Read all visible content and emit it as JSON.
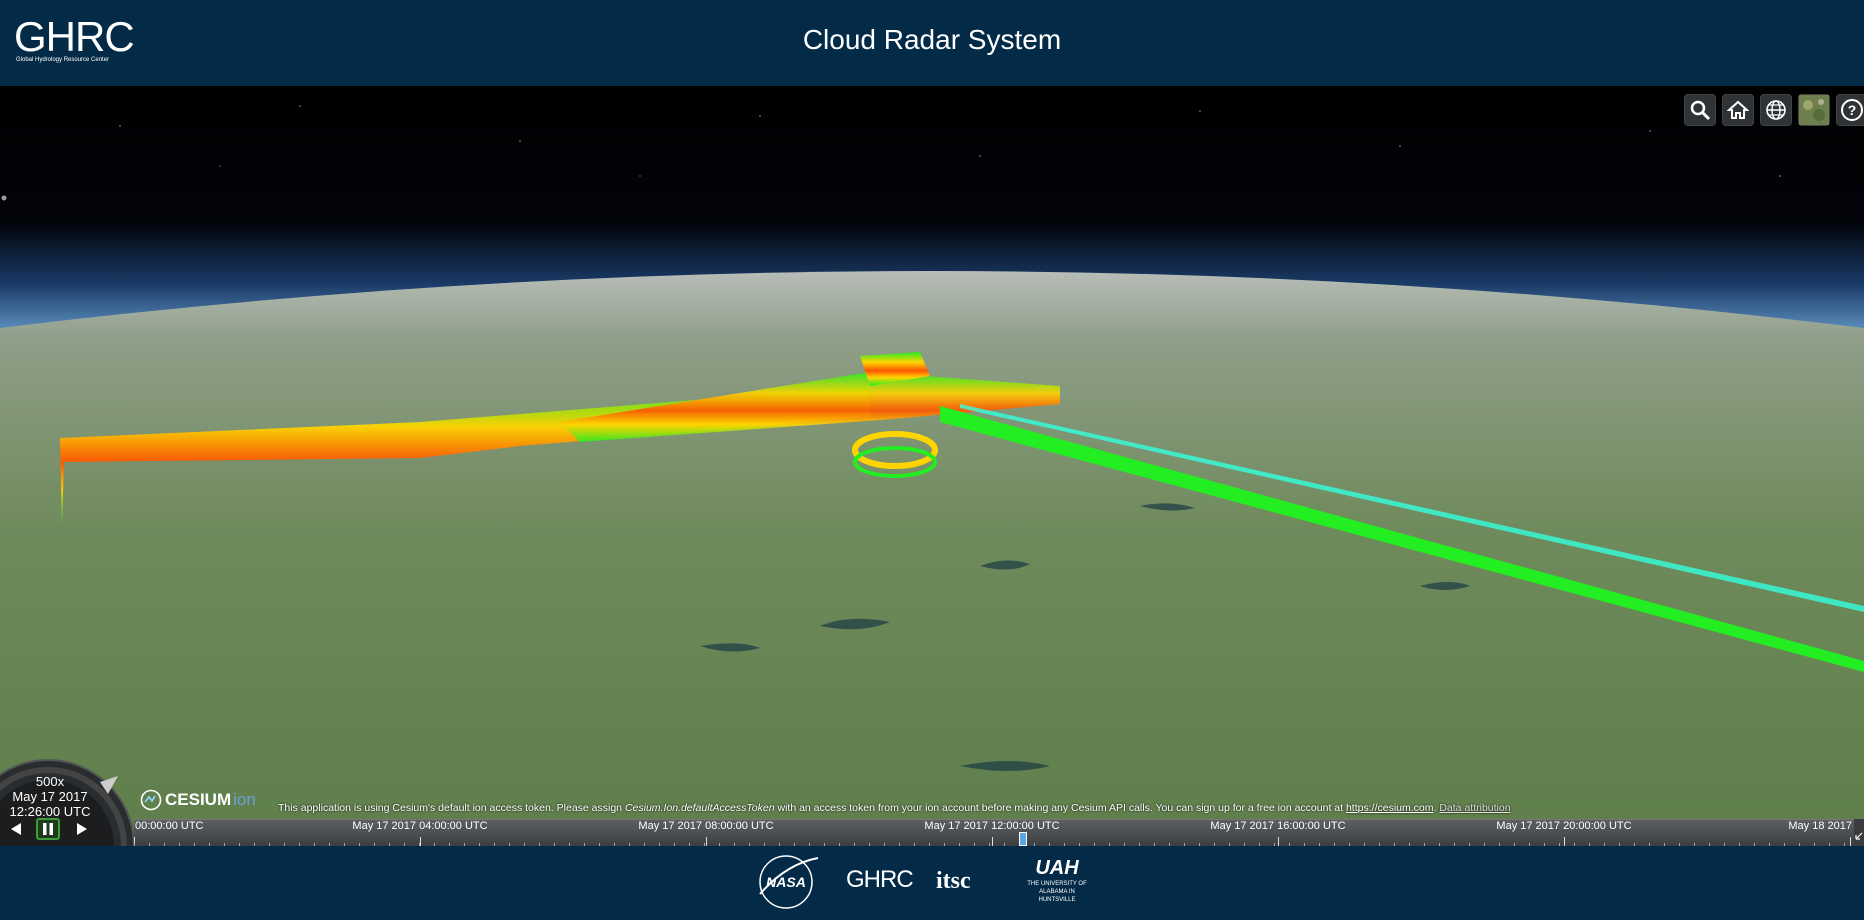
{
  "header": {
    "logo_text": "GHRC",
    "logo_subtitle": "Global Hydrology Resource Center",
    "title": "Cloud Radar System"
  },
  "toolbar": {
    "buttons": [
      {
        "name": "search",
        "icon": "search-icon"
      },
      {
        "name": "home",
        "icon": "home-icon"
      },
      {
        "name": "scene-mode",
        "icon": "globe-icon"
      },
      {
        "name": "base-layer-picker",
        "icon": "imagery-thumbnail-icon"
      },
      {
        "name": "help",
        "icon": "question-icon"
      }
    ]
  },
  "animation": {
    "speed": "500x",
    "date": "May 17 2017",
    "time": "12:26:00 UTC",
    "playing": true
  },
  "credits": {
    "logo_text": "CESIUM",
    "logo_suffix": "ion",
    "text_before": "This application is using Cesium's default ion access token. Please assign ",
    "token_name": "Cesium.Ion.defaultAccessToken",
    "text_after": " with an access token from your ion account before making any Cesium API calls. You can sign up for a free ion account at ",
    "link": "https://cesium.com",
    "link_end": ".",
    "attribution": "Data attribution"
  },
  "timeline": {
    "labels": [
      "00:00:00 UTC",
      "May 17 2017 04:00:00 UTC",
      "May 17 2017 08:00:00 UTC",
      "May 17 2017 12:00:00 UTC",
      "May 17 2017 16:00:00 UTC",
      "May 17 2017 20:00:00 UTC",
      "May 18 2017"
    ],
    "current_fraction": 0.518
  },
  "footer": {
    "logos": [
      "NASA",
      "GHRC",
      "itsc",
      "UAH"
    ],
    "uah_line1": "THE UNIVERSITY OF",
    "uah_line2": "ALABAMA IN HUNTSVILLE"
  },
  "colors": {
    "header_bg": "#032a46",
    "radar_high": "#ff4500",
    "radar_mid": "#ffd400",
    "radar_low": "#22ee22",
    "radar_trace": "#33ffdd"
  }
}
